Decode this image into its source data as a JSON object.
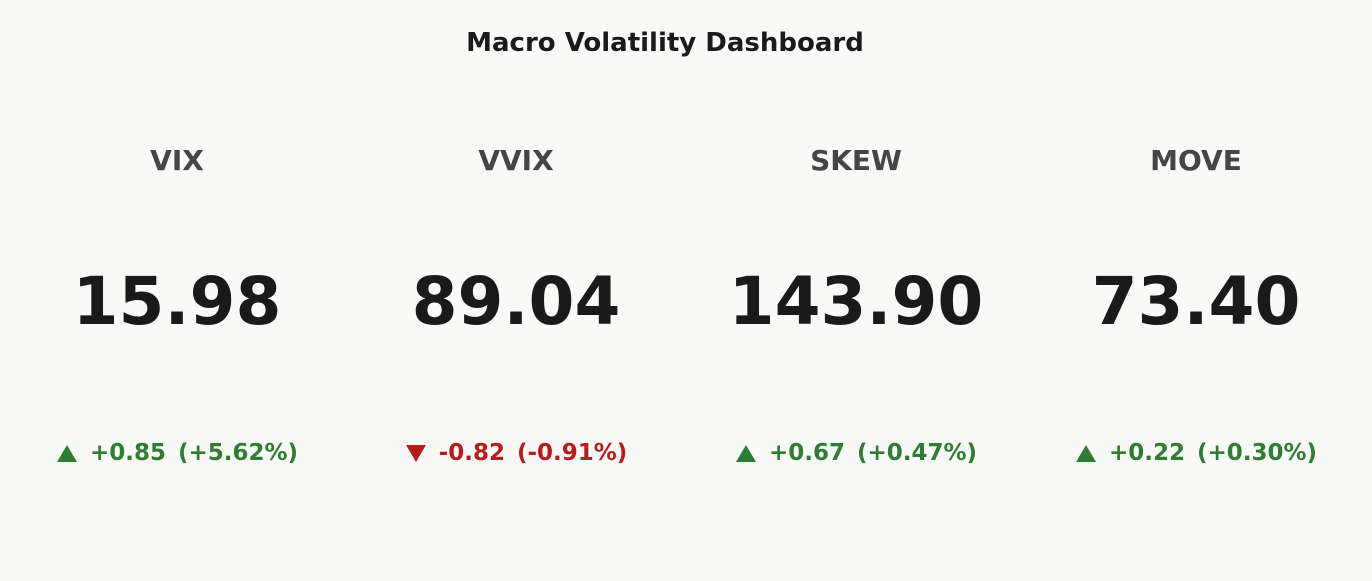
{
  "title": "Macro Volatility Dashboard",
  "tiles": [
    {
      "label": "VIX",
      "value": "15.98",
      "change": "+0.85",
      "change_pct": "(+5.62%)"
    },
    {
      "label": "VVIX",
      "value": "89.04",
      "change": "-0.82",
      "change_pct": "(-0.91%)"
    },
    {
      "label": "SKEW",
      "value": "143.90",
      "change": "+0.67",
      "change_pct": "(+0.47%)"
    },
    {
      "label": "MOVE",
      "value": "73.40",
      "change": "+0.22",
      "change_pct": "(+0.30%)"
    }
  ]
}
